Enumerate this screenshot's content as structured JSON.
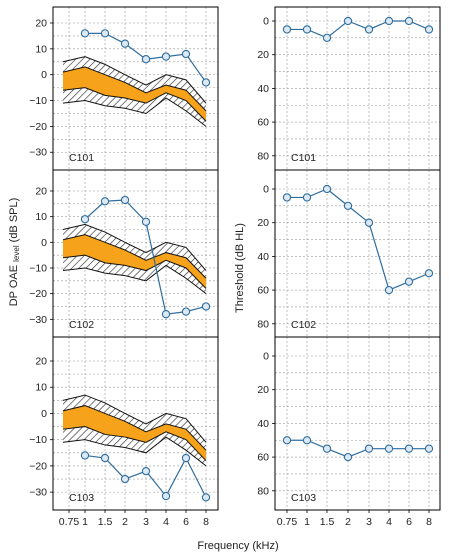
{
  "colors": {
    "band": "#f7a21b",
    "hatch": "#333333",
    "line": "#2f6d9e",
    "marker_fill": "#dce9f4",
    "grid": "#9a9a9a",
    "frame": "#000000"
  },
  "labels": {
    "xlabel": "Frequency (kHz)",
    "left_ylabel_main": "DP OAE ",
    "left_ylabel_sub": "level",
    "left_ylabel_unit": " (dB SPL)",
    "right_ylabel": "Threshold (dB HL)"
  },
  "chart_data": [
    {
      "type": "line",
      "panel": "C101",
      "measure": "DPOAE level",
      "x": [
        1,
        1.5,
        2,
        3,
        4,
        6,
        8
      ],
      "y": [
        16,
        16,
        12,
        6,
        7,
        8,
        -3
      ],
      "ylim": [
        -32,
        23
      ],
      "yticks": [
        20,
        10,
        0,
        -10,
        -20,
        -30
      ]
    },
    {
      "type": "line",
      "panel": "C102",
      "measure": "DPOAE level",
      "x": [
        1,
        1.5,
        2,
        3,
        4,
        6,
        8
      ],
      "y": [
        9,
        16,
        16.5,
        8,
        -28,
        -27,
        -25
      ],
      "ylim": [
        -32,
        23
      ],
      "yticks": [
        20,
        10,
        0,
        -10,
        -20,
        -30
      ]
    },
    {
      "type": "line",
      "panel": "C103",
      "measure": "DPOAE level",
      "x": [
        1,
        1.5,
        2,
        3,
        4,
        6,
        8
      ],
      "y": [
        -16,
        -17,
        -25,
        -22,
        -31.5,
        -17,
        -32
      ],
      "ylim": [
        -35,
        23
      ],
      "yticks": [
        20,
        10,
        0,
        -10,
        -20,
        -30
      ]
    },
    {
      "type": "line",
      "panel": "C101",
      "measure": "Threshold",
      "x": [
        0.75,
        1,
        1.5,
        2,
        3,
        4,
        6,
        8
      ],
      "y": [
        5,
        5,
        10,
        0,
        5,
        0,
        0,
        5
      ],
      "ylim": [
        -5,
        90
      ],
      "yticks": [
        0,
        20,
        40,
        60,
        80
      ],
      "y_inverted": true
    },
    {
      "type": "line",
      "panel": "C102",
      "measure": "Threshold",
      "x": [
        0.75,
        1,
        1.5,
        2,
        3,
        4,
        6,
        8
      ],
      "y": [
        5,
        5,
        0,
        10,
        20,
        60,
        55,
        50
      ],
      "ylim": [
        -5,
        90
      ],
      "yticks": [
        0,
        20,
        40,
        60,
        80
      ],
      "y_inverted": true
    },
    {
      "type": "line",
      "panel": "C103",
      "measure": "Threshold",
      "x": [
        0.75,
        1,
        1.5,
        2,
        3,
        4,
        6,
        8
      ],
      "y": [
        50,
        50,
        55,
        60,
        55,
        55,
        55,
        55
      ],
      "ylim": [
        -5,
        90
      ],
      "yticks": [
        0,
        20,
        40,
        60,
        80
      ],
      "y_inverted": true
    }
  ],
  "normative": {
    "x": [
      0.75,
      1,
      1.5,
      2,
      3,
      4,
      6,
      8
    ],
    "outer_upper": [
      5,
      7,
      4,
      0,
      -4,
      0,
      -2,
      -11
    ],
    "inner_upper": [
      1,
      3,
      0,
      -3,
      -7,
      -4,
      -6,
      -14
    ],
    "inner_lower": [
      -6,
      -5,
      -8,
      -9,
      -11,
      -7,
      -10,
      -18
    ],
    "outer_lower": [
      -11,
      -10,
      -12,
      -13,
      -15,
      -9,
      -14,
      -20
    ]
  },
  "x_ticks": [
    "0.75",
    "1",
    "1.5",
    "2",
    "3",
    "4",
    "6",
    "8"
  ]
}
